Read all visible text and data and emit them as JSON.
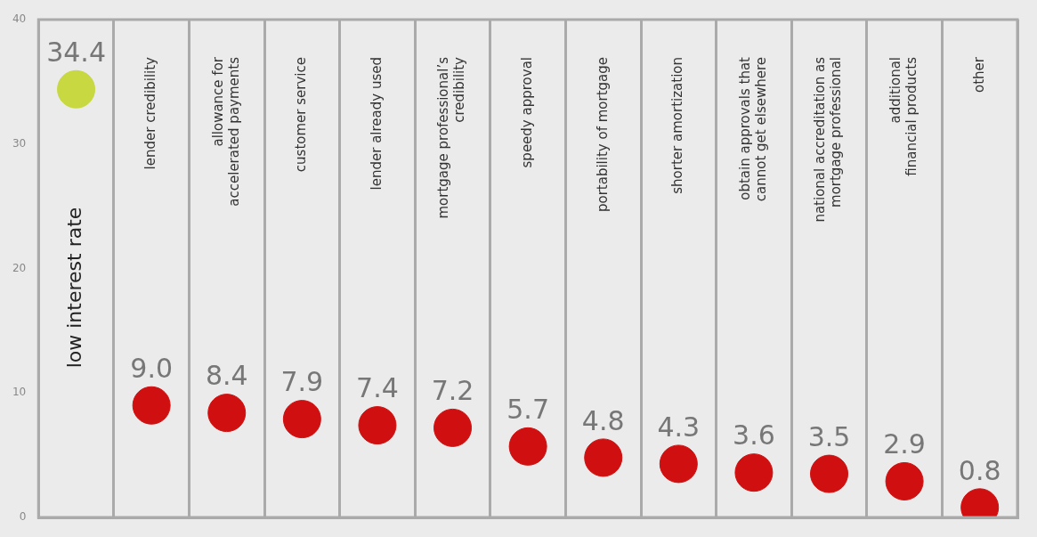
{
  "chart_data": {
    "type": "scatter",
    "categories": [
      "low interest rate",
      "lender credibility",
      "allowance for accelerated payments",
      "customer service",
      "lender already used",
      "mortgage professional’s credibility",
      "speedy approval",
      "portability of mortgage",
      "shorter amortization",
      "obtain approvals that cannot get elsewhere",
      "national accreditation as mortgage professional",
      "additional financial products",
      "other"
    ],
    "values": [
      34.4,
      9.0,
      8.4,
      7.9,
      7.4,
      7.2,
      5.7,
      4.8,
      4.3,
      3.6,
      3.5,
      2.9,
      0.8
    ],
    "colors": [
      "#c8d840",
      "#d01010",
      "#d01010",
      "#d01010",
      "#d01010",
      "#d01010",
      "#d01010",
      "#d01010",
      "#d01010",
      "#d01010",
      "#d01010",
      "#d01010",
      "#d01010"
    ],
    "ylim": [
      0,
      40
    ],
    "yticks": [
      0,
      10,
      20,
      30,
      40
    ],
    "grid": "x",
    "marker": "circle",
    "value_labels": [
      "34.4",
      "9.0",
      "8.4",
      "7.9",
      "7.4",
      "7.2",
      "5.7",
      "4.8",
      "4.3",
      "3.6",
      "3.5",
      "2.9",
      "0.8"
    ],
    "legend": false
  }
}
